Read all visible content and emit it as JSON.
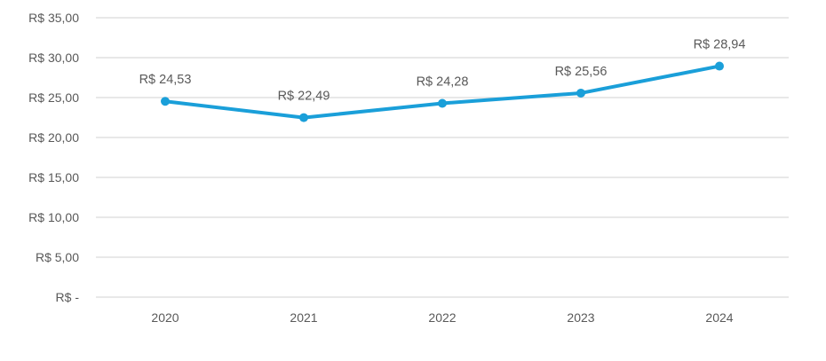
{
  "chart_data": {
    "type": "line",
    "categories": [
      "2020",
      "2021",
      "2022",
      "2023",
      "2024"
    ],
    "values": [
      24.53,
      22.49,
      24.28,
      25.56,
      28.94
    ],
    "data_labels": [
      "R$ 24,53",
      "R$ 22,49",
      "R$ 24,28",
      "R$ 25,56",
      "R$ 28,94"
    ],
    "ylim": [
      0,
      35
    ],
    "yticks": [
      0,
      5,
      10,
      15,
      20,
      25,
      30,
      35
    ],
    "ytick_labels": [
      "R$ -",
      "R$ 5,00",
      "R$ 10,00",
      "R$ 15,00",
      "R$ 20,00",
      "R$ 25,00",
      "R$ 30,00",
      "R$ 35,00"
    ],
    "grid": true,
    "line_color": "#1a9fd9",
    "title": "",
    "xlabel": "",
    "ylabel": ""
  }
}
